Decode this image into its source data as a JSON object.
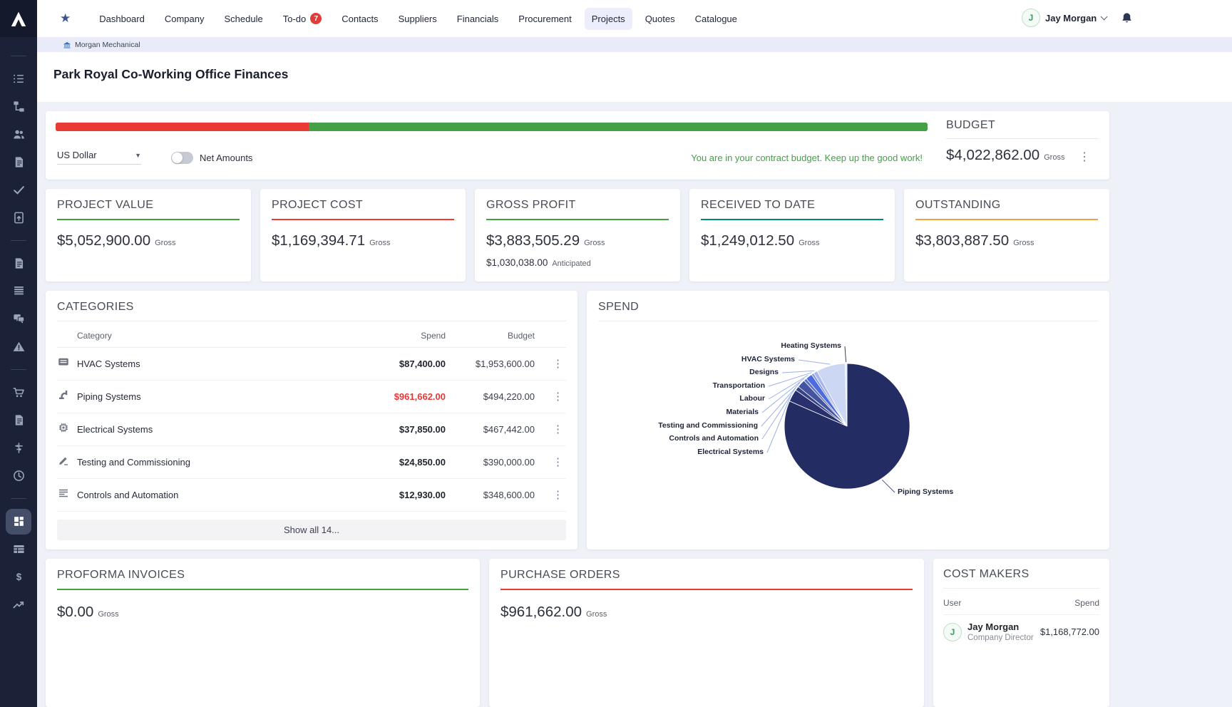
{
  "brand": {
    "logo_letter": "A"
  },
  "nav": {
    "items": [
      {
        "label": "Dashboard"
      },
      {
        "label": "Company"
      },
      {
        "label": "Schedule"
      },
      {
        "label": "To-do",
        "badge": "7"
      },
      {
        "label": "Contacts"
      },
      {
        "label": "Suppliers"
      },
      {
        "label": "Financials"
      },
      {
        "label": "Procurement"
      },
      {
        "label": "Projects",
        "active": true
      },
      {
        "label": "Quotes"
      },
      {
        "label": "Catalogue"
      }
    ],
    "user": {
      "initial": "J",
      "name": "Jay Morgan"
    }
  },
  "breadcrumb": {
    "company": "Morgan Mechanical"
  },
  "page": {
    "title": "Park Royal Co-Working Office Finances"
  },
  "budget_bar": {
    "currency": "US Dollar",
    "toggle_label": "Net Amounts",
    "message": "You are in your contract budget. Keep up the good work!",
    "title": "BUDGET",
    "value": "$4,022,862.00",
    "unit": "Gross",
    "progress_red_pct": 29,
    "red_color": "#e93a36",
    "green_color": "#43a047"
  },
  "kpis": [
    {
      "title": "PROJECT VALUE",
      "value": "$5,052,900.00",
      "unit": "Gross",
      "accent": "#43a047"
    },
    {
      "title": "PROJECT COST",
      "value": "$1,169,394.71",
      "unit": "Gross",
      "accent": "#ef3b36"
    },
    {
      "title": "GROSS PROFIT",
      "value": "$3,883,505.29",
      "unit": "Gross",
      "accent": "#43a047",
      "extra_value": "$1,030,038.00",
      "extra_label": "Anticipated"
    },
    {
      "title": "RECEIVED TO DATE",
      "value": "$1,249,012.50",
      "unit": "Gross",
      "accent": "#00897b"
    },
    {
      "title": "OUTSTANDING",
      "value": "$3,803,887.50",
      "unit": "Gross",
      "accent": "#f0a23c"
    }
  ],
  "categories": {
    "title": "CATEGORIES",
    "columns": [
      "Category",
      "Spend",
      "Budget"
    ],
    "rows": [
      {
        "icon": "hvac",
        "name": "HVAC Systems",
        "spend": "$87,400.00",
        "budget": "$1,953,600.00",
        "alert": false
      },
      {
        "icon": "pipe",
        "name": "Piping Systems",
        "spend": "$961,662.00",
        "budget": "$494,220.00",
        "alert": true
      },
      {
        "icon": "chip",
        "name": "Electrical Systems",
        "spend": "$37,850.00",
        "budget": "$467,442.00",
        "alert": false
      },
      {
        "icon": "pencil",
        "name": "Testing and Commissioning",
        "spend": "$24,850.00",
        "budget": "$390,000.00",
        "alert": false
      },
      {
        "icon": "lines",
        "name": "Controls and Automation",
        "spend": "$12,930.00",
        "budget": "$348,600.00",
        "alert": false
      }
    ],
    "show_all": "Show all 14..."
  },
  "spend_section": {
    "title": "SPEND"
  },
  "chart_data": {
    "type": "pie",
    "title": "SPEND",
    "legend_position": "left-labels",
    "slices": [
      {
        "label": "Piping Systems",
        "value": 961662,
        "color": "#232c63"
      },
      {
        "label": "Electrical Systems",
        "value": 37850,
        "color": "#28316e"
      },
      {
        "label": "Controls and Automation",
        "value": 12930,
        "color": "#364288"
      },
      {
        "label": "Testing and Commissioning",
        "value": 24850,
        "color": "#44539e"
      },
      {
        "label": "Materials",
        "value": 9000,
        "color": "#5d6fc0"
      },
      {
        "label": "Labour",
        "value": 20000,
        "color": "#4c6be0"
      },
      {
        "label": "Transportation",
        "value": 7500,
        "color": "#8599e0"
      },
      {
        "label": "Designs",
        "value": 12000,
        "color": "#a9b8ea"
      },
      {
        "label": "HVAC Systems",
        "value": 87400,
        "color": "#ccd7f3"
      },
      {
        "label": "Heating Systems",
        "value": 6000,
        "color": "#e4eafa"
      }
    ]
  },
  "proforma": {
    "title": "PROFORMA INVOICES",
    "value": "$0.00",
    "unit": "Gross",
    "accent": "#43a047"
  },
  "purchase_orders": {
    "title": "PURCHASE ORDERS",
    "value": "$961,662.00",
    "unit": "Gross",
    "accent": "#e93a36"
  },
  "cost_makers": {
    "title": "COST MAKERS",
    "columns": [
      "User",
      "Spend"
    ],
    "rows": [
      {
        "initial": "J",
        "name": "Jay Morgan",
        "role": "Company Director",
        "spend": "$1,168,772.00"
      }
    ]
  },
  "sidebar": {
    "groups": [
      [
        "list",
        "workflow",
        "people",
        "document",
        "check",
        "file-upload"
      ],
      [
        "document",
        "rows",
        "chat",
        "warning"
      ],
      [
        "cart",
        "document",
        "tune",
        "clock"
      ],
      [
        "dashboard",
        "table",
        "dollar",
        "trend"
      ]
    ],
    "active": "dashboard"
  }
}
